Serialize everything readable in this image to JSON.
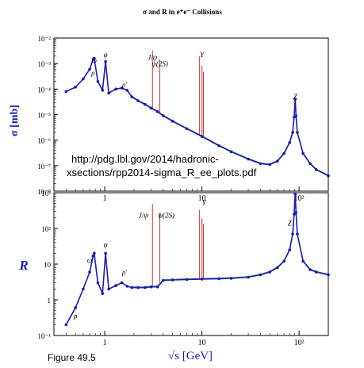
{
  "figure": {
    "title": "σ and R in e⁺e⁻ Collisions",
    "url_line1": "http://pdg.lbl.gov/2014/hadronic-",
    "url_line2": "xsections/rpp2014-sigma_R_ee_plots.pdf",
    "caption": "Figure 49.5",
    "x_axis_label": "√s [GeV]"
  },
  "colors": {
    "data_points": "#1a1ab8",
    "resonance_lines": "#e03030",
    "fit_green": "#3aa830",
    "fit_orange": "#d89030",
    "axis_label_blue": "#1a1ab8"
  },
  "chart_data": [
    {
      "type": "line",
      "title": "",
      "xlabel": "",
      "ylabel": "σ [mb]",
      "xscale": "log",
      "yscale": "log",
      "xlim": [
        0.3,
        200
      ],
      "ylim": [
        1e-08,
        0.01
      ],
      "xticks": [
        1,
        10,
        100
      ],
      "x_tick_labels": [
        "1",
        "10",
        "10²"
      ],
      "yticks": [
        1e-08,
        1e-07,
        1e-06,
        1e-05,
        0.0001,
        0.001,
        0.01
      ],
      "y_tick_labels": [
        "10⁻⁸",
        "10⁻⁷",
        "10⁻⁶",
        "10⁻⁵",
        "10⁻⁴",
        "10⁻³",
        "10⁻²"
      ],
      "annotations": [
        {
          "text": "ρ",
          "x": 0.76,
          "y": 0.00035
        },
        {
          "text": "ω",
          "x": 0.78,
          "y": 0.0011
        },
        {
          "text": "φ",
          "x": 1.02,
          "y": 0.0018
        },
        {
          "text": "ρ'",
          "x": 1.6,
          "y": 0.00012
        },
        {
          "text": "J/ψ",
          "x": 3.1,
          "y": 0.0014
        },
        {
          "text": "ψ(2S)",
          "x": 3.69,
          "y": 0.0008
        },
        {
          "text": "Υ",
          "x": 10.0,
          "y": 0.0018
        },
        {
          "text": "Z",
          "x": 91.2,
          "y": 4e-05
        }
      ],
      "series": [
        {
          "x": [
            0.4,
            0.5,
            0.6,
            0.7,
            0.76,
            0.78,
            0.85,
            0.95,
            1.02,
            1.1,
            1.3,
            1.5,
            1.7,
            1.9,
            2.2,
            2.6,
            3.0,
            3.5,
            4.0,
            5.0,
            7.0,
            10.0,
            15.0,
            20.0,
            30.0,
            40.0,
            50.0,
            60.0,
            70.0,
            80.0,
            86.0,
            89.0,
            91.2,
            93.0,
            96.0,
            110.0,
            130.0,
            150.0,
            200.0
          ],
          "values": [
            8e-05,
            0.00012,
            0.00025,
            0.0006,
            0.0015,
            0.0016,
            0.0002,
            9e-05,
            0.0012,
            7e-05,
            0.0001,
            0.00011,
            9e-05,
            5e-05,
            3.5e-05,
            2.5e-05,
            1.8e-05,
            1.3e-05,
            9e-06,
            5.5e-06,
            2.8e-06,
            1.4e-06,
            6e-07,
            3.5e-07,
            1.8e-07,
            1.2e-07,
            1.1e-07,
            1.5e-07,
            3e-07,
            8e-07,
            2e-06,
            8e-06,
            4e-05,
            9e-06,
            2e-06,
            3e-07,
            1.2e-07,
            7e-08,
            4e-08
          ]
        }
      ]
    },
    {
      "type": "line",
      "title": "",
      "xlabel": "√s [GeV]",
      "ylabel": "R",
      "xscale": "log",
      "yscale": "log",
      "xlim": [
        0.3,
        200
      ],
      "ylim": [
        0.1,
        1000
      ],
      "xticks": [
        1,
        10,
        100
      ],
      "x_tick_labels": [
        "1",
        "10",
        "10²"
      ],
      "yticks": [
        0.1,
        1,
        10,
        100,
        1000
      ],
      "y_tick_labels": [
        "10⁻¹",
        "1",
        "10",
        "10²",
        "10³"
      ],
      "annotations": [
        {
          "text": "ρ",
          "x": 0.5,
          "y": 0.3
        },
        {
          "text": "ω",
          "x": 0.7,
          "y": 11
        },
        {
          "text": "φ",
          "x": 1.02,
          "y": 30
        },
        {
          "text": "ρ'",
          "x": 1.6,
          "y": 5
        },
        {
          "text": "J/ψ",
          "x": 2.5,
          "y": 200
        },
        {
          "text": "ψ(2S)",
          "x": 4.3,
          "y": 200
        },
        {
          "text": "Υ",
          "x": 10.5,
          "y": 450
        },
        {
          "text": "Z",
          "x": 80.0,
          "y": 120
        }
      ],
      "series": [
        {
          "x": [
            0.4,
            0.5,
            0.6,
            0.7,
            0.76,
            0.78,
            0.85,
            0.95,
            1.02,
            1.1,
            1.3,
            1.5,
            1.7,
            1.9,
            2.2,
            2.6,
            3.0,
            3.5,
            4.0,
            5.0,
            7.0,
            10.0,
            15.0,
            20.0,
            30.0,
            40.0,
            50.0,
            60.0,
            70.0,
            80.0,
            86.0,
            89.0,
            91.2,
            93.0,
            96.0,
            110.0,
            130.0,
            150.0,
            200.0
          ],
          "values": [
            0.2,
            0.6,
            2.0,
            6.0,
            17.0,
            20.0,
            3.0,
            1.5,
            20.0,
            2.0,
            2.5,
            3.0,
            2.4,
            2.2,
            2.2,
            2.2,
            2.3,
            2.3,
            3.5,
            3.6,
            3.7,
            3.8,
            3.9,
            4.0,
            4.3,
            5.0,
            6.0,
            8.0,
            12.0,
            25.0,
            70.0,
            250.0,
            900.0,
            280.0,
            70.0,
            12.0,
            7.0,
            6.0,
            5.0
          ]
        }
      ]
    }
  ]
}
